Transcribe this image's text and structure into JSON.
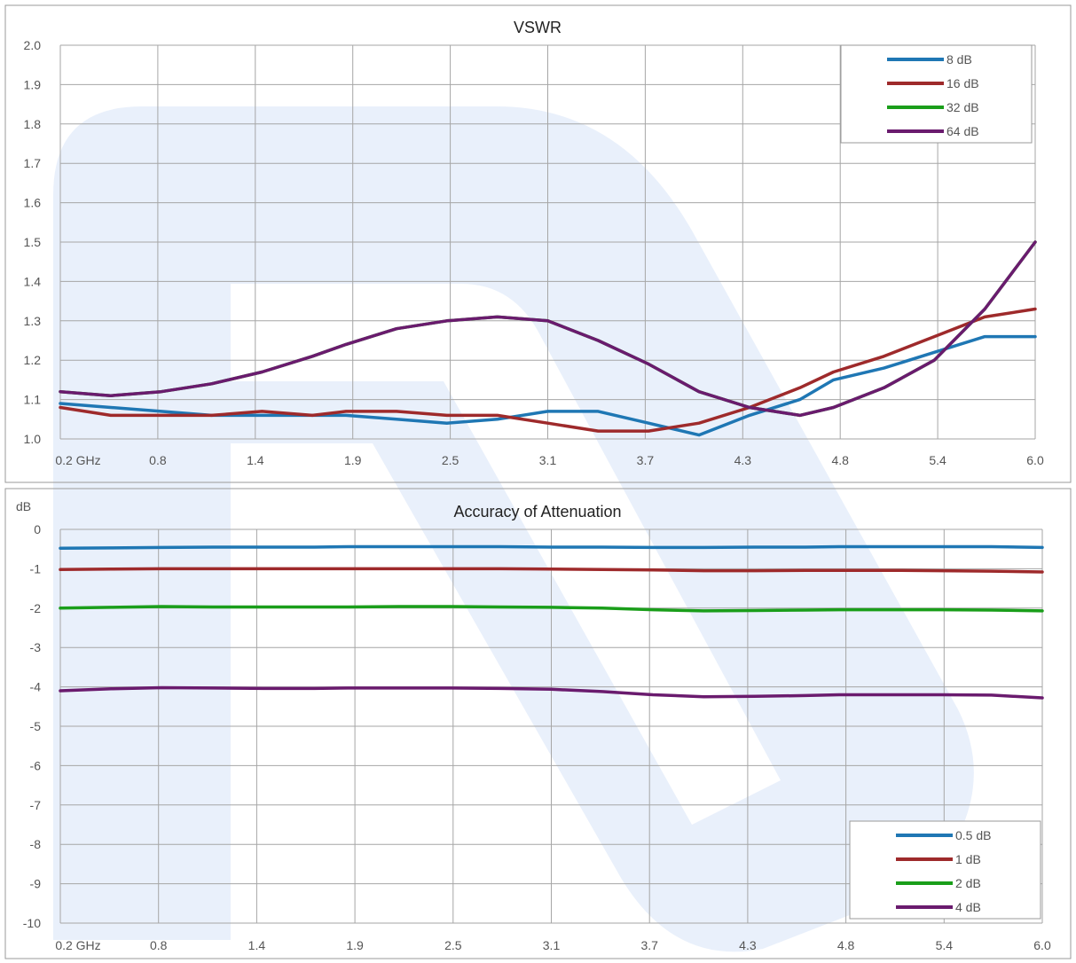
{
  "chart_data": [
    {
      "type": "line",
      "title": "VSWR",
      "ylabel": "",
      "x_tick_labels": [
        "0.2  GHz",
        "0.8",
        "1.4",
        "1.9",
        "2.5",
        "3.1",
        "3.7",
        "4.3",
        "4.8",
        "5.4",
        "6.0"
      ],
      "y_tick_labels": [
        "1.0",
        "1.1",
        "1.2",
        "1.3",
        "1.4",
        "1.5",
        "1.6",
        "1.7",
        "1.8",
        "1.9",
        "2.0"
      ],
      "xlim": [
        0.2,
        6.0
      ],
      "ylim": [
        1.0,
        2.0
      ],
      "grid": true,
      "legend_position": "top-right",
      "x": [
        0.2,
        0.5,
        0.8,
        1.1,
        1.4,
        1.7,
        1.9,
        2.2,
        2.5,
        2.8,
        3.1,
        3.4,
        3.7,
        4.0,
        4.3,
        4.6,
        4.8,
        5.1,
        5.4,
        5.7,
        6.0
      ],
      "series": [
        {
          "name": "8 dB",
          "color": "#1f77b4",
          "values": [
            1.09,
            1.08,
            1.07,
            1.06,
            1.06,
            1.06,
            1.06,
            1.05,
            1.04,
            1.05,
            1.07,
            1.07,
            1.04,
            1.01,
            1.06,
            1.1,
            1.15,
            1.18,
            1.22,
            1.26,
            1.26
          ]
        },
        {
          "name": "16 dB",
          "color": "#9e2a2b",
          "values": [
            1.08,
            1.06,
            1.06,
            1.06,
            1.07,
            1.06,
            1.07,
            1.07,
            1.06,
            1.06,
            1.04,
            1.02,
            1.02,
            1.04,
            1.08,
            1.13,
            1.17,
            1.21,
            1.26,
            1.31,
            1.33
          ]
        },
        {
          "name": "32 dB",
          "color": "#1a9e1a",
          "values": [
            1.12,
            1.11,
            1.12,
            1.14,
            1.17,
            1.21,
            1.24,
            1.28,
            1.3,
            1.31,
            1.3,
            1.25,
            1.19,
            1.12,
            1.08,
            1.06,
            1.08,
            1.13,
            1.2,
            1.33,
            1.5
          ]
        },
        {
          "name": "64 dB",
          "color": "#6a1b6e",
          "values": [
            1.12,
            1.11,
            1.12,
            1.14,
            1.17,
            1.21,
            1.24,
            1.28,
            1.3,
            1.31,
            1.3,
            1.25,
            1.19,
            1.12,
            1.08,
            1.06,
            1.08,
            1.13,
            1.2,
            1.33,
            1.5
          ]
        }
      ]
    },
    {
      "type": "line",
      "title": "Accuracy of Attenuation",
      "ylabel": "dB",
      "x_tick_labels": [
        "0.2  GHz",
        "0.8",
        "1.4",
        "1.9",
        "2.5",
        "3.1",
        "3.7",
        "4.3",
        "4.8",
        "5.4",
        "6.0"
      ],
      "y_tick_labels": [
        "0",
        "-1",
        "-2",
        "-3",
        "-4",
        "-5",
        "-6",
        "-7",
        "-8",
        "-9",
        "-10"
      ],
      "xlim": [
        0.2,
        6.0
      ],
      "ylim": [
        -10,
        0
      ],
      "grid": true,
      "legend_position": "bottom-right",
      "x": [
        0.2,
        0.5,
        0.8,
        1.1,
        1.4,
        1.7,
        1.9,
        2.2,
        2.5,
        2.8,
        3.1,
        3.4,
        3.7,
        4.0,
        4.3,
        4.6,
        4.8,
        5.1,
        5.4,
        5.7,
        6.0
      ],
      "series": [
        {
          "name": "0.5 dB",
          "color": "#1f77b4",
          "values": [
            -0.48,
            -0.47,
            -0.46,
            -0.45,
            -0.45,
            -0.45,
            -0.44,
            -0.44,
            -0.44,
            -0.44,
            -0.45,
            -0.45,
            -0.46,
            -0.46,
            -0.45,
            -0.45,
            -0.44,
            -0.44,
            -0.44,
            -0.44,
            -0.46
          ]
        },
        {
          "name": "1 dB",
          "color": "#9e2a2b",
          "values": [
            -1.02,
            -1.01,
            -1.0,
            -1.0,
            -1.0,
            -1.0,
            -1.0,
            -1.0,
            -1.0,
            -1.0,
            -1.01,
            -1.02,
            -1.03,
            -1.05,
            -1.05,
            -1.04,
            -1.04,
            -1.04,
            -1.05,
            -1.06,
            -1.08
          ]
        },
        {
          "name": "2 dB",
          "color": "#1a9e1a",
          "values": [
            -2.0,
            -1.98,
            -1.96,
            -1.97,
            -1.97,
            -1.97,
            -1.97,
            -1.96,
            -1.96,
            -1.97,
            -1.98,
            -2.0,
            -2.04,
            -2.07,
            -2.06,
            -2.05,
            -2.04,
            -2.04,
            -2.04,
            -2.05,
            -2.07
          ]
        },
        {
          "name": "4 dB",
          "color": "#6a1b6e",
          "values": [
            -4.1,
            -4.05,
            -4.02,
            -4.03,
            -4.04,
            -4.04,
            -4.03,
            -4.03,
            -4.03,
            -4.04,
            -4.06,
            -4.12,
            -4.2,
            -4.25,
            -4.24,
            -4.22,
            -4.2,
            -4.2,
            -4.2,
            -4.21,
            -4.28
          ]
        }
      ]
    }
  ]
}
